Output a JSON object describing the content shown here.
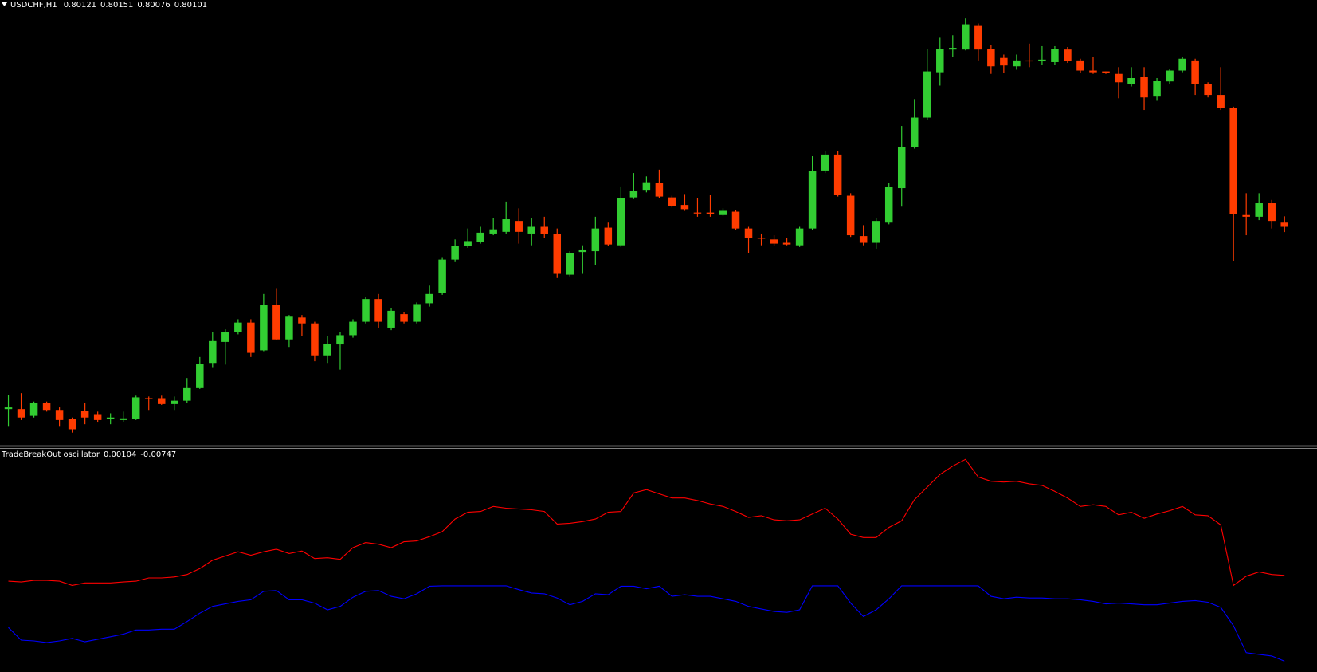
{
  "chart_data": [
    {
      "type": "candlestick",
      "title": "USDCHF,H1",
      "up_color": "#32cd32",
      "down_color": "#ff3c00",
      "ylim": [
        0.79061,
        0.81181
      ],
      "open": [
        0.79233,
        0.79233,
        0.79201,
        0.79261,
        0.79229,
        0.79185,
        0.79225,
        0.79209,
        0.79185,
        0.79181,
        0.79185,
        0.79285,
        0.79285,
        0.79257,
        0.79273,
        0.79333,
        0.79453,
        0.79553,
        0.79601,
        0.79645,
        0.79513,
        0.79729,
        0.79565,
        0.79669,
        0.79641,
        0.79489,
        0.79541,
        0.79585,
        0.79649,
        0.79757,
        0.79621,
        0.79685,
        0.79649,
        0.79737,
        0.79785,
        0.79945,
        0.80009,
        0.80029,
        0.80069,
        0.80077,
        0.80129,
        0.80069,
        0.80101,
        0.80065,
        0.79873,
        0.79981,
        0.79985,
        0.80097,
        0.80013,
        0.80241,
        0.80277,
        0.80309,
        0.80241,
        0.80205,
        0.80169,
        0.80169,
        0.80157,
        0.80173,
        0.80093,
        0.80049,
        0.80041,
        0.80025,
        0.80013,
        0.80093,
        0.80369,
        0.80445,
        0.80249,
        0.80057,
        0.80025,
        0.80121,
        0.80285,
        0.80481,
        0.80621,
        0.80837,
        0.80945,
        0.80945,
        0.81061,
        0.80949,
        0.80905,
        0.80865,
        0.80893,
        0.80889,
        0.80885,
        0.80945,
        0.80893,
        0.80845,
        0.80841,
        0.80829,
        0.80781,
        0.80813,
        0.80721,
        0.80793,
        0.80845,
        0.80893,
        0.80781,
        0.80729,
        0.80665,
        0.80157,
        0.80149,
        0.80213,
        0.80121
      ],
      "high": [
        0.79301,
        0.79309,
        0.79269,
        0.79269,
        0.79241,
        0.79193,
        0.79261,
        0.79221,
        0.79213,
        0.79221,
        0.79297,
        0.79293,
        0.79297,
        0.79293,
        0.79381,
        0.79481,
        0.79601,
        0.79613,
        0.79661,
        0.79661,
        0.79781,
        0.79809,
        0.79681,
        0.79681,
        0.79649,
        0.79581,
        0.79601,
        0.79661,
        0.79765,
        0.79781,
        0.79713,
        0.79693,
        0.79741,
        0.79821,
        0.79953,
        0.80041,
        0.80093,
        0.80101,
        0.80141,
        0.80221,
        0.80189,
        0.80141,
        0.80149,
        0.80093,
        0.79985,
        0.80013,
        0.80149,
        0.80121,
        0.80293,
        0.80357,
        0.80341,
        0.80373,
        0.80249,
        0.80257,
        0.80237,
        0.80253,
        0.80189,
        0.80181,
        0.80101,
        0.80069,
        0.80061,
        0.80049,
        0.80101,
        0.80437,
        0.80461,
        0.80461,
        0.80261,
        0.80109,
        0.80141,
        0.80309,
        0.80581,
        0.80709,
        0.80949,
        0.81001,
        0.81013,
        0.81093,
        0.81069,
        0.80965,
        0.80921,
        0.80921,
        0.80973,
        0.80961,
        0.80961,
        0.80957,
        0.80901,
        0.80909,
        0.80841,
        0.80861,
        0.80861,
        0.80861,
        0.80809,
        0.80853,
        0.80909,
        0.80901,
        0.80789,
        0.80861,
        0.80673,
        0.80261,
        0.80261,
        0.80229,
        0.80151
      ],
      "low": [
        0.79149,
        0.79181,
        0.79193,
        0.79221,
        0.79149,
        0.79121,
        0.79161,
        0.79169,
        0.79161,
        0.79173,
        0.79181,
        0.79229,
        0.79253,
        0.79229,
        0.79261,
        0.79329,
        0.79429,
        0.79445,
        0.79589,
        0.79481,
        0.79509,
        0.79561,
        0.79529,
        0.79581,
        0.79461,
        0.79453,
        0.79421,
        0.79573,
        0.79641,
        0.79621,
        0.79609,
        0.79641,
        0.79641,
        0.79721,
        0.79777,
        0.79933,
        0.80001,
        0.80021,
        0.80061,
        0.80069,
        0.80021,
        0.80013,
        0.80049,
        0.79857,
        0.79865,
        0.79877,
        0.79917,
        0.80009,
        0.80005,
        0.80233,
        0.80265,
        0.80237,
        0.80193,
        0.80177,
        0.80149,
        0.80149,
        0.80153,
        0.80085,
        0.79977,
        0.80013,
        0.80009,
        0.80013,
        0.80005,
        0.80085,
        0.80357,
        0.80245,
        0.80053,
        0.80013,
        0.79997,
        0.80113,
        0.80197,
        0.80473,
        0.80609,
        0.80773,
        0.80909,
        0.80941,
        0.80893,
        0.80829,
        0.80833,
        0.80849,
        0.80861,
        0.80873,
        0.80873,
        0.80881,
        0.80833,
        0.80829,
        0.80829,
        0.80713,
        0.80769,
        0.80657,
        0.80701,
        0.80781,
        0.80837,
        0.80729,
        0.80717,
        0.80657,
        0.79937,
        0.80061,
        0.80133,
        0.80093,
        0.80076
      ],
      "close": [
        0.79241,
        0.79193,
        0.79261,
        0.79229,
        0.79181,
        0.79137,
        0.79193,
        0.79181,
        0.79193,
        0.79189,
        0.79289,
        0.79281,
        0.79257,
        0.79273,
        0.79333,
        0.79449,
        0.79557,
        0.79601,
        0.79645,
        0.79501,
        0.79729,
        0.79565,
        0.79673,
        0.79641,
        0.79489,
        0.79545,
        0.79585,
        0.79649,
        0.79757,
        0.79649,
        0.79701,
        0.79649,
        0.79733,
        0.79781,
        0.79945,
        0.80009,
        0.80033,
        0.80073,
        0.80089,
        0.80137,
        0.80077,
        0.80101,
        0.80065,
        0.79877,
        0.79977,
        0.79993,
        0.80093,
        0.80017,
        0.80237,
        0.80273,
        0.80313,
        0.80245,
        0.80201,
        0.80185,
        0.80165,
        0.80161,
        0.80177,
        0.80093,
        0.80049,
        0.80045,
        0.80021,
        0.80017,
        0.80093,
        0.80365,
        0.80445,
        0.80253,
        0.80061,
        0.80025,
        0.80129,
        0.80289,
        0.80481,
        0.80621,
        0.80841,
        0.80949,
        0.80953,
        0.81065,
        0.80945,
        0.80865,
        0.80869,
        0.80893,
        0.80889,
        0.80897,
        0.80949,
        0.80889,
        0.80845,
        0.80837,
        0.80833,
        0.80789,
        0.80809,
        0.80717,
        0.80797,
        0.80845,
        0.80901,
        0.80781,
        0.80729,
        0.80665,
        0.80161,
        0.80149,
        0.80213,
        0.80129,
        0.80101
      ]
    },
    {
      "type": "line",
      "title": "TradeBreakOut oscillator",
      "ylim": [
        -0.0085,
        0.0136
      ],
      "series": [
        {
          "color": "#ff0000",
          "values": [
            0.00046,
            0.00038,
            0.00054,
            0.00054,
            0.00046,
            4e-05,
            0.00029,
            0.00029,
            0.00029,
            0.00038,
            0.00046,
            0.00079,
            0.00079,
            0.00088,
            0.00113,
            0.00171,
            0.00254,
            0.00296,
            0.00338,
            0.00304,
            0.00338,
            0.00363,
            0.00321,
            0.00346,
            0.00271,
            0.00279,
            0.00263,
            0.00379,
            0.0043,
            0.00413,
            0.00379,
            0.00438,
            0.00446,
            0.00488,
            0.00538,
            0.00663,
            0.0073,
            0.00738,
            0.00788,
            0.00771,
            0.00763,
            0.00755,
            0.00738,
            0.00613,
            0.00621,
            0.00638,
            0.00663,
            0.0073,
            0.00738,
            0.00922,
            0.00955,
            0.00913,
            0.00872,
            0.00872,
            0.00847,
            0.00813,
            0.00788,
            0.00738,
            0.0068,
            0.00696,
            0.00655,
            0.00646,
            0.00655,
            0.00713,
            0.00771,
            0.00663,
            0.00513,
            0.0048,
            0.0048,
            0.0058,
            0.00646,
            0.00855,
            0.0098,
            0.01105,
            0.01188,
            0.01255,
            0.0108,
            0.01038,
            0.0103,
            0.01038,
            0.01013,
            0.00997,
            0.00938,
            0.00872,
            0.00788,
            0.00805,
            0.00788,
            0.00705,
            0.0073,
            0.00671,
            0.00713,
            0.00746,
            0.00788,
            0.00705,
            0.00696,
            0.00605,
            4e-05,
            0.00096,
            0.00138,
            0.00113,
            0.00104
          ]
        },
        {
          "color": "#0000ff",
          "values": [
            -0.00413,
            -0.00538,
            -0.00546,
            -0.00563,
            -0.00546,
            -0.00521,
            -0.00555,
            -0.0053,
            -0.00505,
            -0.0048,
            -0.00438,
            -0.00438,
            -0.0043,
            -0.0043,
            -0.00354,
            -0.00271,
            -0.00204,
            -0.00179,
            -0.00154,
            -0.00138,
            -0.00054,
            -0.00046,
            -0.00138,
            -0.00138,
            -0.00171,
            -0.00238,
            -0.00204,
            -0.00113,
            -0.00054,
            -0.00046,
            -0.00104,
            -0.00129,
            -0.00079,
            -4e-05,
            0,
            0,
            0,
            0,
            0,
            0,
            -0.00038,
            -0.00071,
            -0.00079,
            -0.00121,
            -0.00188,
            -0.00154,
            -0.00079,
            -0.00088,
            -4e-05,
            -4e-05,
            -0.00029,
            -4e-05,
            -0.00104,
            -0.00088,
            -0.00104,
            -0.00104,
            -0.00129,
            -0.00154,
            -0.00204,
            -0.00229,
            -0.00254,
            -0.00263,
            -0.00238,
            0,
            0,
            0,
            -0.00171,
            -0.00304,
            -0.00238,
            -0.00129,
            0,
            0,
            0,
            0,
            0,
            0,
            0,
            -0.00104,
            -0.00129,
            -0.00113,
            -0.00121,
            -0.00121,
            -0.00129,
            -0.00129,
            -0.00138,
            -0.00154,
            -0.00179,
            -0.00171,
            -0.00179,
            -0.00188,
            -0.00188,
            -0.00171,
            -0.00154,
            -0.00146,
            -0.00163,
            -0.00213,
            -0.00396,
            -0.00663,
            -0.0068,
            -0.00696,
            -0.00747
          ]
        }
      ]
    }
  ]
}
